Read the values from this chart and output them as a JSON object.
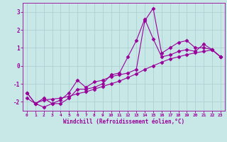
{
  "xlabel": "Windchill (Refroidissement éolien,°C)",
  "x": [
    0,
    1,
    2,
    3,
    4,
    5,
    6,
    7,
    8,
    9,
    10,
    11,
    12,
    13,
    14,
    15,
    16,
    17,
    18,
    19,
    20,
    21,
    22,
    23
  ],
  "line1": [
    -1.5,
    -2.1,
    -2.3,
    -2.1,
    -1.9,
    -1.5,
    -0.8,
    -1.2,
    -0.9,
    -0.8,
    -0.6,
    -0.5,
    -0.4,
    -0.2,
    2.5,
    3.2,
    0.7,
    1.0,
    1.3,
    1.4,
    1.0,
    1.0,
    0.9,
    0.5
  ],
  "line2": [
    -1.5,
    -2.1,
    -1.8,
    -2.1,
    -2.1,
    -1.8,
    -1.3,
    -1.3,
    -1.2,
    -1.0,
    -0.5,
    -0.4,
    0.5,
    1.4,
    2.6,
    1.5,
    0.5,
    0.6,
    0.8,
    0.9,
    0.8,
    1.2,
    0.9,
    0.5
  ],
  "line3": [
    -1.8,
    -2.1,
    -1.9,
    -1.85,
    -1.8,
    -1.7,
    -1.55,
    -1.45,
    -1.3,
    -1.15,
    -1.0,
    -0.85,
    -0.65,
    -0.45,
    -0.2,
    0.0,
    0.2,
    0.38,
    0.5,
    0.62,
    0.72,
    0.8,
    0.88,
    0.5
  ],
  "color": "#990099",
  "bg_color": "#c8e8e8",
  "grid_color": "#aacccc",
  "ylim": [
    -2.5,
    3.5
  ],
  "yticks": [
    -2,
    -1,
    0,
    1,
    2,
    3
  ],
  "xlim": [
    -0.5,
    23.5
  ],
  "xticks": [
    0,
    1,
    2,
    3,
    4,
    5,
    6,
    7,
    8,
    9,
    10,
    11,
    12,
    13,
    14,
    15,
    16,
    17,
    18,
    19,
    20,
    21,
    22,
    23
  ]
}
